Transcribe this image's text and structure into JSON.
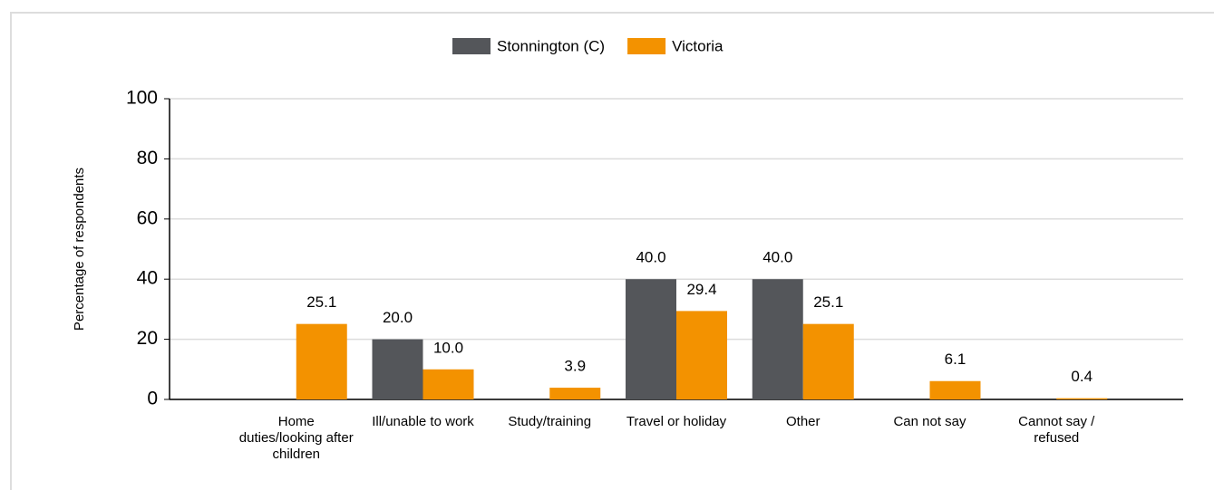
{
  "chart_data": {
    "type": "bar",
    "y_label": "Percentage of respondents",
    "categories": [
      "Home duties/looking after children",
      "Ill/unable to work",
      "Study/training",
      "Travel or holiday",
      "Other",
      "Can not say",
      "Cannot say / refused"
    ],
    "series": [
      {
        "name": "Stonnington (C)",
        "color": "#54565a",
        "values": [
          null,
          20.0,
          null,
          40.0,
          40.0,
          null,
          null
        ],
        "value_labels": [
          null,
          "20.0",
          null,
          "40.0",
          "40.0",
          null,
          null
        ]
      },
      {
        "name": "Victoria",
        "color": "#f39200",
        "values": [
          25.1,
          10.0,
          3.9,
          29.4,
          25.1,
          6.1,
          0.4
        ],
        "value_labels": [
          "25.1",
          "10.0",
          "3.9",
          "29.4",
          "25.1",
          "6.1",
          "0.4"
        ]
      }
    ],
    "ylim": [
      0,
      100
    ],
    "yticks": [
      0,
      20,
      40,
      60,
      80,
      100
    ],
    "grid": true,
    "legend": "top"
  }
}
